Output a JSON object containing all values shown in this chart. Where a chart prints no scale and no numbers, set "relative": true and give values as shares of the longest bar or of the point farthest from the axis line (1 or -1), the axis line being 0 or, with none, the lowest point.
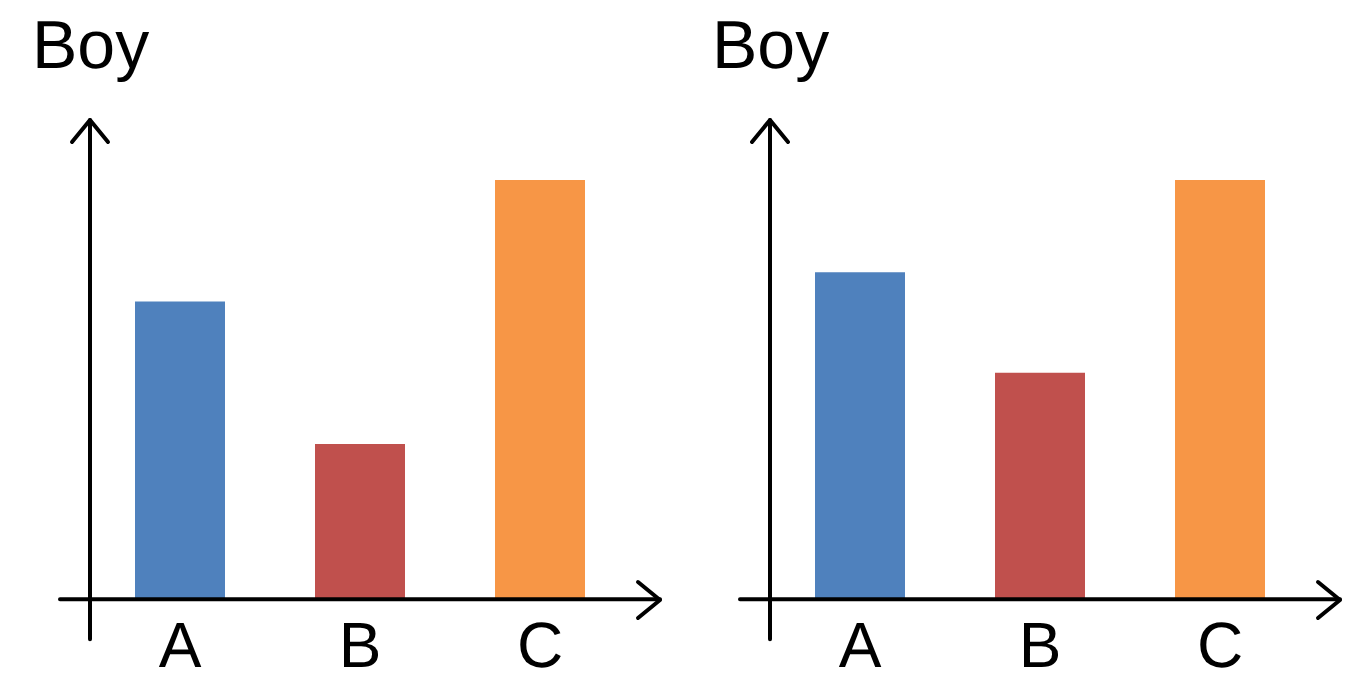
{
  "chart_data": [
    {
      "type": "bar",
      "ylabel": "Boy",
      "relative": true,
      "categories": [
        "A",
        "B",
        "C"
      ],
      "values": [
        0.71,
        0.37,
        1
      ],
      "colors": [
        "#4f81bd",
        "#c0504d",
        "#f79646"
      ],
      "grid": false,
      "legend": false
    },
    {
      "type": "bar",
      "ylabel": "Boy",
      "relative": true,
      "categories": [
        "A",
        "B",
        "C"
      ],
      "values": [
        0.78,
        0.54,
        1
      ],
      "colors": [
        "#4f81bd",
        "#c0504d",
        "#f79646"
      ],
      "grid": false,
      "legend": false
    }
  ]
}
